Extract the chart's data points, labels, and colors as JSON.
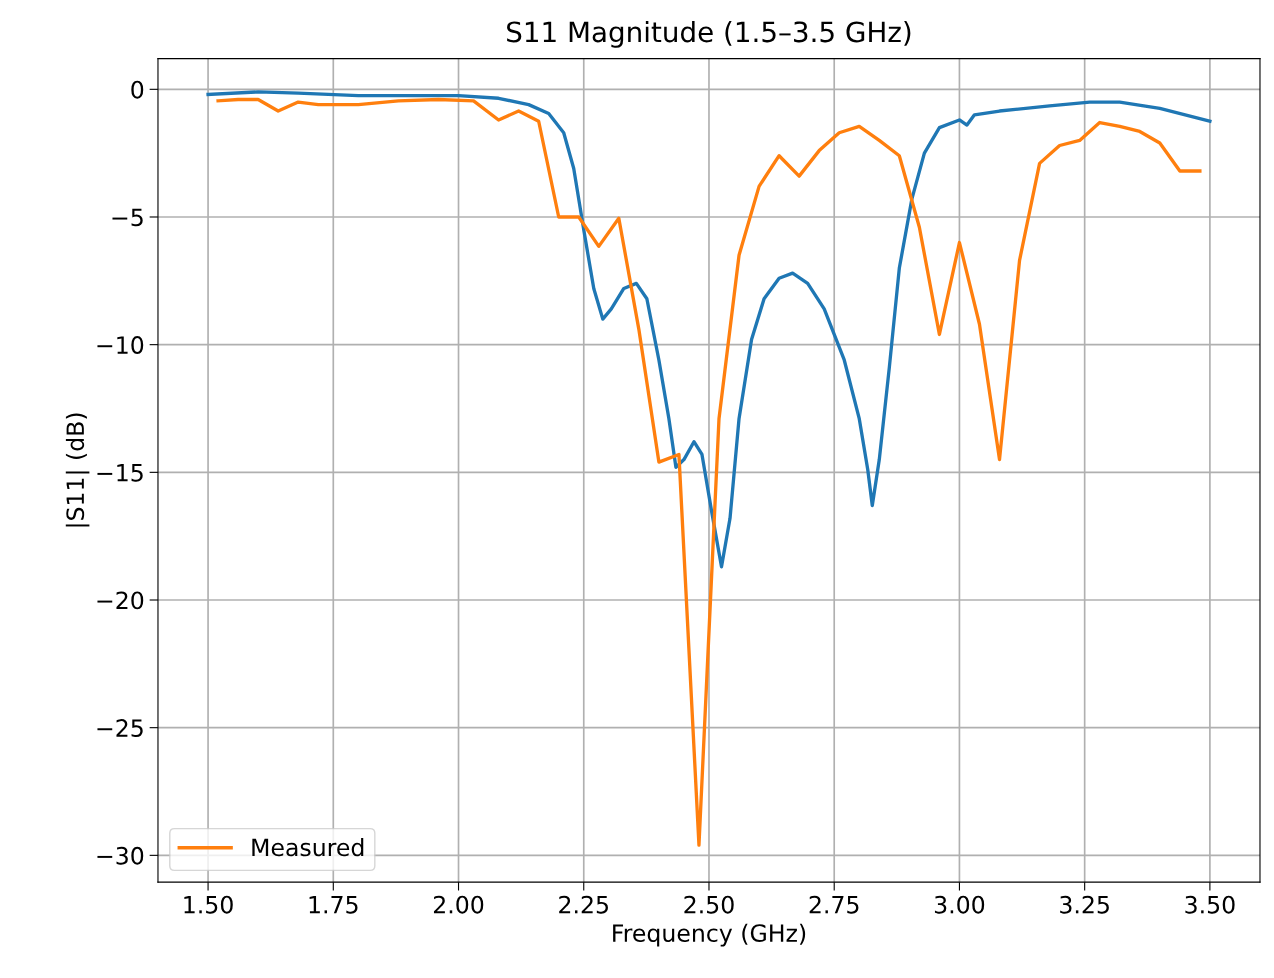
{
  "chart_data": {
    "type": "line",
    "title": "S11 Magnitude (1.5–3.5 GHz)",
    "xlabel": "Frequency (GHz)",
    "ylabel": "|S11| (dB)",
    "xlim": [
      1.4,
      3.6
    ],
    "ylim": [
      -31.05,
      1.2
    ],
    "xticks": [
      {
        "value": 1.5,
        "label": "1.50"
      },
      {
        "value": 1.75,
        "label": "1.75"
      },
      {
        "value": 2.0,
        "label": "2.00"
      },
      {
        "value": 2.25,
        "label": "2.25"
      },
      {
        "value": 2.5,
        "label": "2.50"
      },
      {
        "value": 2.75,
        "label": "2.75"
      },
      {
        "value": 3.0,
        "label": "3.00"
      },
      {
        "value": 3.25,
        "label": "3.25"
      },
      {
        "value": 3.5,
        "label": "3.50"
      }
    ],
    "yticks": [
      {
        "value": -30,
        "label": "−30"
      },
      {
        "value": -25,
        "label": "−25"
      },
      {
        "value": -20,
        "label": "−20"
      },
      {
        "value": -15,
        "label": "−15"
      },
      {
        "value": -10,
        "label": "−10"
      },
      {
        "value": -5,
        "label": "−5"
      },
      0
    ],
    "grid": true,
    "legend": "bottom left",
    "marker": "none",
    "line_style": "solid",
    "series": [
      {
        "color": "#1f77b4",
        "x": [
          1.5,
          1.6,
          1.68,
          1.8,
          2.0,
          2.08,
          2.14,
          2.18,
          2.21,
          2.23,
          2.25,
          2.27,
          2.288,
          2.305,
          2.33,
          2.355,
          2.376,
          2.4,
          2.42,
          2.434,
          2.45,
          2.47,
          2.486,
          2.505,
          2.525,
          2.542,
          2.56,
          2.585,
          2.61,
          2.64,
          2.667,
          2.697,
          2.73,
          2.77,
          2.8,
          2.817,
          2.826,
          2.84,
          2.86,
          2.88,
          2.905,
          2.93,
          2.96,
          3.0,
          3.015,
          3.03,
          3.08,
          3.18,
          3.26,
          3.32,
          3.4,
          3.5
        ],
        "values": [
          -0.2,
          -0.1,
          -0.15,
          -0.25,
          -0.25,
          -0.35,
          -0.6,
          -0.95,
          -1.7,
          -3.1,
          -5.5,
          -7.8,
          -9.0,
          -8.6,
          -7.8,
          -7.6,
          -8.2,
          -10.6,
          -12.9,
          -14.8,
          -14.5,
          -13.8,
          -14.3,
          -16.5,
          -18.7,
          -16.8,
          -12.9,
          -9.8,
          -8.2,
          -7.4,
          -7.2,
          -7.6,
          -8.6,
          -10.6,
          -12.9,
          -14.9,
          -16.3,
          -14.5,
          -10.9,
          -7.0,
          -4.3,
          -2.5,
          -1.5,
          -1.2,
          -1.4,
          -1.0,
          -0.85,
          -0.65,
          -0.5,
          -0.5,
          -0.75,
          -1.25
        ]
      },
      {
        "name": "Measured",
        "color": "#ff7f0e",
        "x": [
          1.52,
          1.56,
          1.6,
          1.64,
          1.68,
          1.72,
          1.8,
          1.88,
          1.96,
          2.03,
          2.08,
          2.12,
          2.16,
          2.2,
          2.24,
          2.28,
          2.32,
          2.36,
          2.4,
          2.44,
          2.48,
          2.52,
          2.56,
          2.6,
          2.64,
          2.68,
          2.72,
          2.76,
          2.8,
          2.84,
          2.88,
          2.92,
          2.96,
          3.0,
          3.04,
          3.08,
          3.12,
          3.16,
          3.2,
          3.24,
          3.28,
          3.32,
          3.36,
          3.4,
          3.44,
          3.48
        ],
        "values": [
          -0.45,
          -0.4,
          -0.4,
          -0.85,
          -0.5,
          -0.6,
          -0.6,
          -0.45,
          -0.4,
          -0.45,
          -1.2,
          -0.85,
          -1.25,
          -5.0,
          -5.0,
          -6.15,
          -5.05,
          -9.4,
          -14.6,
          -14.3,
          -29.6,
          -12.9,
          -6.5,
          -3.8,
          -2.6,
          -3.4,
          -2.4,
          -1.7,
          -1.45,
          -2.0,
          -2.6,
          -5.4,
          -9.6,
          -6.0,
          -9.2,
          -14.5,
          -6.7,
          -2.9,
          -2.2,
          -2.0,
          -1.3,
          -1.45,
          -1.65,
          -2.1,
          -3.2,
          -3.2
        ]
      }
    ]
  }
}
